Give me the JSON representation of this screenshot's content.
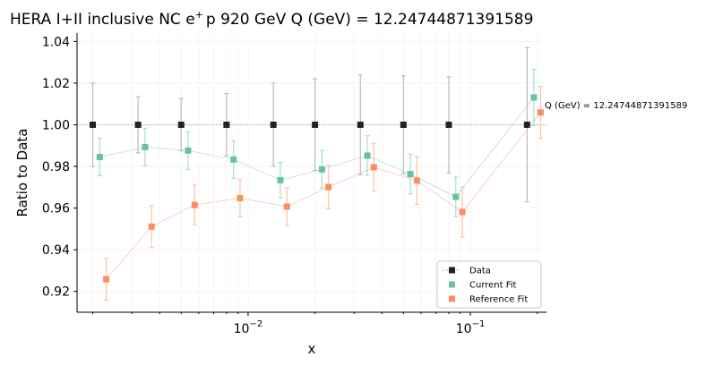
{
  "chart_data": {
    "type": "scatter",
    "title_main": "HERA I+II inclusive NC e",
    "title_sup": "+",
    "title_rest": "p 920 GeV Q (GeV) = 12.24744871391589",
    "xlabel": "x",
    "ylabel": "Ratio to Data",
    "xscale": "log",
    "xlim": [
      0.0017,
      0.22
    ],
    "ylim": [
      0.91,
      1.044
    ],
    "yticks": [
      0.92,
      0.94,
      0.96,
      0.98,
      1.0,
      1.02,
      1.04
    ],
    "ytick_labels": [
      "0.92",
      "0.94",
      "0.96",
      "0.98",
      "1.00",
      "1.02",
      "1.04"
    ],
    "xticks": [
      {
        "value": 0.01,
        "base": "10",
        "exp": "−2"
      },
      {
        "value": 0.1,
        "base": "10",
        "exp": "−1"
      }
    ],
    "annotation": "Q (GeV) = 12.24744871391589",
    "reference_line": 1.0,
    "legend_position": "lower-right",
    "series": [
      {
        "name": "Data",
        "color": "#222222",
        "err_color": "#bbbbbb",
        "x": [
          0.002,
          0.0032,
          0.005,
          0.008,
          0.013,
          0.02,
          0.032,
          0.05,
          0.08,
          0.18
        ],
        "y": [
          1.0,
          1.0,
          1.0,
          1.0,
          1.0,
          1.0,
          1.0,
          1.0,
          1.0,
          1.0
        ],
        "err": [
          0.02,
          0.0135,
          0.0125,
          0.015,
          0.02,
          0.022,
          0.024,
          0.0235,
          0.023,
          0.037
        ]
      },
      {
        "name": "Current Fit",
        "color": "#66c2a5",
        "err_color": "#a9dfcc",
        "x": [
          0.00215,
          0.00344,
          0.00537,
          0.0086,
          0.01397,
          0.0215,
          0.0344,
          0.0537,
          0.086,
          0.193
        ],
        "y": [
          0.9845,
          0.9893,
          0.9876,
          0.9833,
          0.9734,
          0.9786,
          0.9852,
          0.9763,
          0.9654,
          1.0131
        ],
        "err": [
          0.009,
          0.009,
          0.009,
          0.009,
          0.0085,
          0.009,
          0.0095,
          0.0095,
          0.0095,
          0.0135
        ]
      },
      {
        "name": "Reference Fit",
        "color": "#fc8d62",
        "err_color": "#fdc2a8",
        "x": [
          0.0023,
          0.00368,
          0.00575,
          0.0092,
          0.01495,
          0.023,
          0.0368,
          0.0575,
          0.092,
          0.207
        ],
        "y": [
          0.9258,
          0.9511,
          0.9615,
          0.9648,
          0.9607,
          0.9701,
          0.9796,
          0.9732,
          0.9581,
          1.0059
        ],
        "err": [
          0.01,
          0.01,
          0.0095,
          0.009,
          0.009,
          0.0105,
          0.0115,
          0.0115,
          0.012,
          0.0125
        ]
      }
    ]
  }
}
